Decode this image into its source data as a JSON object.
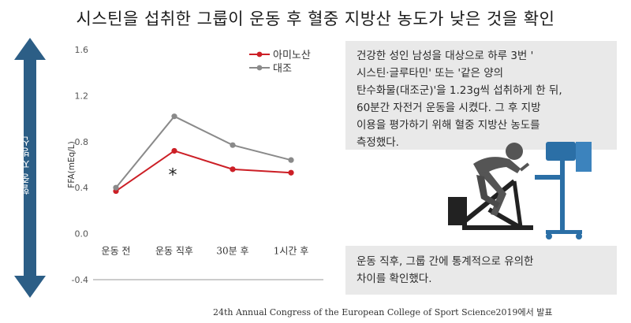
{
  "title": "시스틴을 섭취한 그룹이 운동 후 혈중 지방산 농도가 낮은 것을 확인",
  "side_axis_label": "혈중 지방산",
  "chart_data": {
    "type": "line",
    "title": "",
    "ylabel": "FFA(mEq/L)",
    "xlabel": "",
    "categories": [
      "운동 전",
      "운동 직후",
      "30분 후",
      "1시간 후"
    ],
    "ylim": [
      -0.4,
      1.6
    ],
    "yticks": [
      -0.4,
      0.0,
      0.4,
      0.8,
      1.2,
      1.6
    ],
    "ytick_labels": [
      "-0.4",
      "0.0",
      "0.4",
      "0.8",
      "1.2",
      "1.6"
    ],
    "series": [
      {
        "name": "아미노산",
        "color": "#cc1f26",
        "values": [
          0.37,
          0.72,
          0.56,
          0.53
        ]
      },
      {
        "name": "대조",
        "color": "#8a8a8a",
        "values": [
          0.4,
          1.02,
          0.77,
          0.64
        ]
      }
    ],
    "annotation": {
      "text": "*",
      "category_index": 1
    },
    "legend_position": "top-right",
    "grid": false
  },
  "panel_top_lines": [
    "건강한 성인 남성을 대상으로 하루 3번 '",
    "시스틴·글루타민' 또는 '같은 양의",
    "탄수화물(대조군)'을 1.23g씩 섭취하게 한 뒤,",
    "60분간 자전거 운동을 시켰다. 그 후 지방",
    "이용을 평가하기 위해 혈중 지방산 농도를",
    "측정했다."
  ],
  "panel_bottom_lines": [
    "운동 직후, 그룹 간에 통계적으로 유의한",
    "차이를 확인했다."
  ],
  "source": "24th Annual Congress of the European College of Sport Science2019에서 발표",
  "colors": {
    "arrow": "#2c5e86",
    "panel": "#e9e9e9",
    "cyclist": "#4a4a4a"
  }
}
